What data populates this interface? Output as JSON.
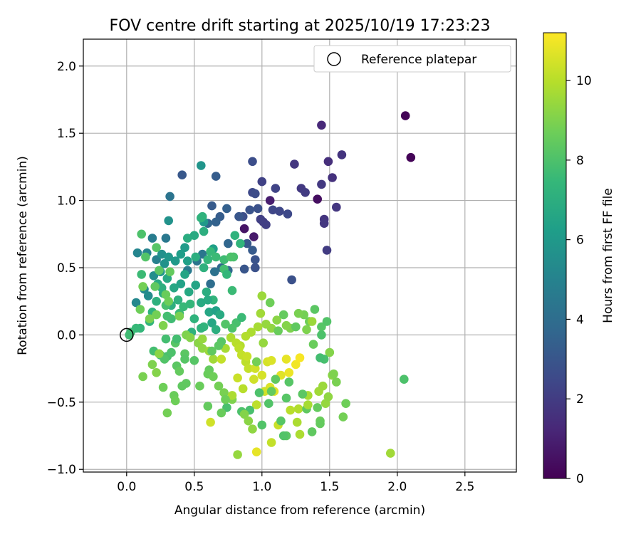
{
  "chart_data": {
    "type": "scatter",
    "title": "FOV centre drift starting at 2025/10/19 17:23:23",
    "xlabel": "Angular distance from reference (arcmin)",
    "ylabel": "Rotation from reference (arcmin)",
    "xlim": [
      -0.32,
      2.88
    ],
    "ylim": [
      -1.02,
      2.2
    ],
    "xticks": [
      0.0,
      0.5,
      1.0,
      1.5,
      2.0,
      2.5
    ],
    "xtick_labels": [
      "0.0",
      "0.5",
      "1.0",
      "1.5",
      "2.0",
      "2.5"
    ],
    "yticks": [
      -1.0,
      -0.5,
      0.0,
      0.5,
      1.0,
      1.5,
      2.0
    ],
    "ytick_labels": [
      "−1.0",
      "−0.5",
      "0.0",
      "0.5",
      "1.0",
      "1.5",
      "2.0"
    ],
    "grid": true,
    "legend": {
      "position": "top-right",
      "entries": [
        "Reference platepar"
      ]
    },
    "reference_point": {
      "x": 0.0,
      "y": 0.0,
      "label": "Reference platepar"
    },
    "colorbar": {
      "label": "Hours from first FF file",
      "colormap": "viridis",
      "range": [
        0,
        11.2
      ],
      "ticks": [
        0,
        2,
        4,
        6,
        8,
        10
      ],
      "tick_labels": [
        "0",
        "2",
        "4",
        "6",
        "8",
        "10"
      ],
      "colors": [
        "#440154",
        "#482878",
        "#3e4989",
        "#31688e",
        "#26828e",
        "#1f9e89",
        "#35b779",
        "#6ece58",
        "#b5de2b",
        "#fde725"
      ]
    },
    "points": [
      [
        2.06,
        1.63,
        0.1
      ],
      [
        2.1,
        1.32,
        0.1
      ],
      [
        1.41,
        1.01,
        0.4
      ],
      [
        0.87,
        0.79,
        0.6
      ],
      [
        1.06,
        1.0,
        0.9
      ],
      [
        0.94,
        0.73,
        0.8
      ],
      [
        1.44,
        1.56,
        1.3
      ],
      [
        1.49,
        1.29,
        1.5
      ],
      [
        1.52,
        1.17,
        1.6
      ],
      [
        1.59,
        1.34,
        1.7
      ],
      [
        1.24,
        1.27,
        1.8
      ],
      [
        1.29,
        1.09,
        1.9
      ],
      [
        1.32,
        1.06,
        2.0
      ],
      [
        1.44,
        1.12,
        1.9
      ],
      [
        1.46,
        0.86,
        1.7
      ],
      [
        1.55,
        0.95,
        1.8
      ],
      [
        1.48,
        0.63,
        2.0
      ],
      [
        1.46,
        0.83,
        1.8
      ],
      [
        1.01,
        0.84,
        2.0
      ],
      [
        1.03,
        0.82,
        2.1
      ],
      [
        0.99,
        0.86,
        2.1
      ],
      [
        1.0,
        1.14,
        2.2
      ],
      [
        1.1,
        1.09,
        2.3
      ],
      [
        1.13,
        0.92,
        2.4
      ],
      [
        1.19,
        0.9,
        2.5
      ],
      [
        1.08,
        0.93,
        2.4
      ],
      [
        0.93,
        1.06,
        2.5
      ],
      [
        0.95,
        1.05,
        2.6
      ],
      [
        0.93,
        1.29,
        2.7
      ],
      [
        1.22,
        0.41,
        2.8
      ],
      [
        0.95,
        0.5,
        2.8
      ],
      [
        0.95,
        0.56,
        2.9
      ],
      [
        0.87,
        0.49,
        3.0
      ],
      [
        0.86,
        0.88,
        2.7
      ],
      [
        0.97,
        0.94,
        2.8
      ],
      [
        0.91,
        0.93,
        2.9
      ],
      [
        0.83,
        0.88,
        3.0
      ],
      [
        0.89,
        0.68,
        3.1
      ],
      [
        0.93,
        0.63,
        3.2
      ],
      [
        0.69,
        0.88,
        3.3
      ],
      [
        0.63,
        0.96,
        3.2
      ],
      [
        0.66,
        1.18,
        3.3
      ],
      [
        0.41,
        1.19,
        3.1
      ],
      [
        0.74,
        0.94,
        3.4
      ],
      [
        0.66,
        0.84,
        3.5
      ],
      [
        0.6,
        0.83,
        3.6
      ],
      [
        0.75,
        0.68,
        3.7
      ],
      [
        0.75,
        0.48,
        3.8
      ],
      [
        0.7,
        0.5,
        3.8
      ],
      [
        0.62,
        0.38,
        4.0
      ],
      [
        0.65,
        0.47,
        4.2
      ],
      [
        0.56,
        0.6,
        4.4
      ],
      [
        0.52,
        0.55,
        4.3
      ],
      [
        0.45,
        0.48,
        4.6
      ],
      [
        0.32,
        1.03,
        4.3
      ],
      [
        0.29,
        0.72,
        4.5
      ],
      [
        0.19,
        0.72,
        4.7
      ],
      [
        0.22,
        0.56,
        4.9
      ],
      [
        0.15,
        0.61,
        5.0
      ],
      [
        0.08,
        0.61,
        5.1
      ],
      [
        0.07,
        0.24,
        5.2
      ],
      [
        0.13,
        0.34,
        5.3
      ],
      [
        0.16,
        0.29,
        5.4
      ],
      [
        0.2,
        0.44,
        5.5
      ],
      [
        0.26,
        0.6,
        5.6
      ],
      [
        0.28,
        0.53,
        5.7
      ],
      [
        0.25,
        0.47,
        5.8
      ],
      [
        0.31,
        0.58,
        5.9
      ],
      [
        0.36,
        0.55,
        6.0
      ],
      [
        0.43,
        0.65,
        6.1
      ],
      [
        0.4,
        0.6,
        6.2
      ],
      [
        0.45,
        0.55,
        6.3
      ],
      [
        0.4,
        0.38,
        6.4
      ],
      [
        0.43,
        0.45,
        6.5
      ],
      [
        0.35,
        0.35,
        6.6
      ],
      [
        0.3,
        0.42,
        6.7
      ],
      [
        0.23,
        0.38,
        6.8
      ],
      [
        0.27,
        0.31,
        6.9
      ],
      [
        0.33,
        0.22,
        7.0
      ],
      [
        0.38,
        0.26,
        7.1
      ],
      [
        0.31,
        0.85,
        5.7
      ],
      [
        0.55,
        1.26,
        5.8
      ],
      [
        0.57,
        0.84,
        6.0
      ],
      [
        0.64,
        0.64,
        6.3
      ],
      [
        0.56,
        0.88,
        7.1
      ],
      [
        0.55,
        0.87,
        7.2
      ],
      [
        0.57,
        0.77,
        7.0
      ],
      [
        0.5,
        0.74,
        6.8
      ],
      [
        0.45,
        0.72,
        6.9
      ],
      [
        0.51,
        0.58,
        7.0
      ],
      [
        0.57,
        0.5,
        7.1
      ],
      [
        0.6,
        0.56,
        7.4
      ],
      [
        0.62,
        0.62,
        7.5
      ],
      [
        0.66,
        0.58,
        7.6
      ],
      [
        0.72,
        0.56,
        7.7
      ],
      [
        0.72,
        0.49,
        7.8
      ],
      [
        0.84,
        0.68,
        7.3
      ],
      [
        0.8,
        0.74,
        7.2
      ],
      [
        0.79,
        0.58,
        7.9
      ],
      [
        0.77,
        0.58,
        8.0
      ],
      [
        0.74,
        0.45,
        7.4
      ],
      [
        0.78,
        0.33,
        7.6
      ],
      [
        0.64,
        0.26,
        7.3
      ],
      [
        0.59,
        0.32,
        6.9
      ],
      [
        0.51,
        0.37,
        6.5
      ],
      [
        0.46,
        0.32,
        6.7
      ],
      [
        0.55,
        0.24,
        6.8
      ],
      [
        0.61,
        0.17,
        6.6
      ],
      [
        0.66,
        0.18,
        6.4
      ],
      [
        0.63,
        0.09,
        6.6
      ],
      [
        0.69,
        0.15,
        6.8
      ],
      [
        0.66,
        0.04,
        7.0
      ],
      [
        0.48,
        0.02,
        7.1
      ],
      [
        0.5,
        0.12,
        7.2
      ],
      [
        0.57,
        0.06,
        7.3
      ],
      [
        0.47,
        0.23,
        7.4
      ],
      [
        0.42,
        0.21,
        7.5
      ],
      [
        0.39,
        0.16,
        7.6
      ],
      [
        0.33,
        0.12,
        7.7
      ],
      [
        0.3,
        0.14,
        7.8
      ],
      [
        0.29,
        0.22,
        7.9
      ],
      [
        0.26,
        0.35,
        7.0
      ],
      [
        0.22,
        0.25,
        7.1
      ],
      [
        0.19,
        0.17,
        7.2
      ],
      [
        0.17,
        0.1,
        7.3
      ],
      [
        0.1,
        0.05,
        7.4
      ],
      [
        0.07,
        0.05,
        7.5
      ],
      [
        0.03,
        0.02,
        7.6
      ],
      [
        0.02,
        0.0,
        7.7
      ],
      [
        0.11,
        0.45,
        7.6
      ],
      [
        0.11,
        0.75,
        8.0
      ],
      [
        0.14,
        0.58,
        8.1
      ],
      [
        0.22,
        0.65,
        8.2
      ],
      [
        0.24,
        0.48,
        8.3
      ],
      [
        0.21,
        0.36,
        8.4
      ],
      [
        0.32,
        0.47,
        8.5
      ],
      [
        0.29,
        0.3,
        8.6
      ],
      [
        0.31,
        0.25,
        8.7
      ],
      [
        0.22,
        0.15,
        8.8
      ],
      [
        0.17,
        0.12,
        8.9
      ],
      [
        0.27,
        0.07,
        9.0
      ],
      [
        0.1,
        0.19,
        8.7
      ],
      [
        0.12,
        0.36,
        8.8
      ],
      [
        0.2,
        -0.12,
        7.8
      ],
      [
        0.25,
        -0.15,
        7.7
      ],
      [
        0.29,
        -0.03,
        7.8
      ],
      [
        0.3,
        -0.16,
        7.9
      ],
      [
        0.33,
        -0.13,
        8.0
      ],
      [
        0.28,
        -0.18,
        8.1
      ],
      [
        0.36,
        -0.06,
        8.2
      ],
      [
        0.37,
        -0.23,
        8.3
      ],
      [
        0.41,
        -0.38,
        8.4
      ],
      [
        0.39,
        -0.27,
        8.5
      ],
      [
        0.35,
        -0.45,
        8.6
      ],
      [
        0.27,
        -0.39,
        8.7
      ],
      [
        0.3,
        -0.58,
        8.8
      ],
      [
        0.12,
        -0.31,
        8.9
      ],
      [
        0.19,
        -0.22,
        9.0
      ],
      [
        0.22,
        -0.28,
        9.1
      ],
      [
        0.24,
        -0.14,
        9.2
      ],
      [
        0.39,
        0.14,
        8.9
      ],
      [
        0.44,
        0.0,
        9.0
      ],
      [
        0.47,
        -0.02,
        9.1
      ],
      [
        0.53,
        -0.06,
        9.2
      ],
      [
        0.56,
        -0.1,
        9.3
      ],
      [
        0.56,
        -0.03,
        9.4
      ],
      [
        0.61,
        -0.12,
        9.5
      ],
      [
        0.64,
        -0.18,
        9.6
      ],
      [
        0.73,
        -0.1,
        9.7
      ],
      [
        0.77,
        -0.02,
        9.8
      ],
      [
        0.84,
        -0.08,
        9.9
      ],
      [
        0.85,
        -0.15,
        10.0
      ],
      [
        0.88,
        -0.2,
        10.1
      ],
      [
        0.9,
        -0.25,
        10.2
      ],
      [
        0.82,
        -0.32,
        10.3
      ],
      [
        0.94,
        -0.33,
        10.4
      ],
      [
        1.0,
        -0.3,
        10.5
      ],
      [
        1.06,
        -0.39,
        10.6
      ],
      [
        1.09,
        -0.42,
        10.7
      ],
      [
        0.96,
        -0.87,
        10.8
      ],
      [
        0.82,
        -0.89,
        9.4
      ],
      [
        0.96,
        -0.52,
        10.1
      ],
      [
        1.02,
        -0.42,
        10.4
      ],
      [
        1.12,
        -0.67,
        10.3
      ],
      [
        1.07,
        -0.8,
        10.2
      ],
      [
        1.21,
        -0.56,
        10.0
      ],
      [
        1.27,
        -0.55,
        9.9
      ],
      [
        1.28,
        -0.74,
        9.8
      ],
      [
        1.34,
        -0.45,
        9.7
      ],
      [
        1.42,
        -0.42,
        9.6
      ],
      [
        1.45,
        -0.38,
        9.5
      ],
      [
        1.47,
        -0.51,
        9.4
      ],
      [
        1.49,
        -0.46,
        9.3
      ],
      [
        1.52,
        -0.3,
        9.2
      ],
      [
        1.5,
        -0.13,
        9.1
      ],
      [
        1.53,
        -0.29,
        9.0
      ],
      [
        1.55,
        -0.35,
        8.9
      ],
      [
        1.6,
        -0.61,
        8.8
      ],
      [
        1.62,
        -0.51,
        8.7
      ],
      [
        1.43,
        -0.64,
        8.6
      ],
      [
        1.43,
        -0.66,
        8.5
      ],
      [
        1.37,
        -0.72,
        8.4
      ],
      [
        1.18,
        -0.75,
        8.3
      ],
      [
        1.14,
        -0.64,
        8.2
      ],
      [
        1.0,
        -0.67,
        8.1
      ],
      [
        0.85,
        -0.57,
        8.0
      ],
      [
        0.91,
        -0.56,
        7.9
      ],
      [
        0.74,
        -0.54,
        7.9
      ],
      [
        0.98,
        -0.43,
        8.0
      ],
      [
        1.05,
        -0.51,
        8.1
      ],
      [
        1.18,
        -0.47,
        8.2
      ],
      [
        1.3,
        -0.44,
        8.3
      ],
      [
        1.33,
        -0.55,
        8.4
      ],
      [
        1.41,
        -0.54,
        8.5
      ],
      [
        1.38,
        -0.07,
        8.6
      ],
      [
        1.35,
        0.1,
        8.7
      ],
      [
        1.31,
        0.15,
        8.8
      ],
      [
        1.27,
        0.16,
        8.9
      ],
      [
        1.21,
        0.05,
        9.0
      ],
      [
        1.18,
        0.07,
        9.1
      ],
      [
        1.11,
        0.11,
        9.2
      ],
      [
        1.07,
        0.05,
        9.3
      ],
      [
        1.03,
        0.08,
        9.4
      ],
      [
        1.0,
        0.29,
        9.5
      ],
      [
        0.99,
        0.16,
        9.6
      ],
      [
        0.97,
        0.06,
        9.7
      ],
      [
        0.92,
        0.02,
        9.8
      ],
      [
        0.88,
        -0.01,
        9.9
      ],
      [
        0.81,
        -0.06,
        10.0
      ],
      [
        0.83,
        -0.1,
        10.1
      ],
      [
        0.85,
        -0.15,
        10.2
      ],
      [
        0.89,
        -0.16,
        10.3
      ],
      [
        0.95,
        -0.25,
        10.4
      ],
      [
        1.04,
        -0.2,
        10.5
      ],
      [
        1.07,
        -0.19,
        10.6
      ],
      [
        1.14,
        -0.3,
        10.7
      ],
      [
        1.18,
        -0.18,
        10.8
      ],
      [
        1.2,
        -0.28,
        10.9
      ],
      [
        1.25,
        -0.22,
        11.0
      ],
      [
        1.28,
        -0.17,
        11.1
      ],
      [
        0.96,
        -0.2,
        8.8
      ],
      [
        1.06,
        0.24,
        8.7
      ],
      [
        1.12,
        0.03,
        8.6
      ],
      [
        1.16,
        0.15,
        8.5
      ],
      [
        1.25,
        0.06,
        8.4
      ],
      [
        1.39,
        0.19,
        8.3
      ],
      [
        1.44,
        0.06,
        8.2
      ],
      [
        1.48,
        0.1,
        8.1
      ],
      [
        1.44,
        0.0,
        8.0
      ],
      [
        1.46,
        -0.18,
        7.9
      ],
      [
        1.43,
        -0.17,
        7.8
      ],
      [
        0.81,
        0.09,
        7.9
      ],
      [
        0.78,
        0.05,
        8.0
      ],
      [
        0.73,
        0.08,
        8.1
      ],
      [
        0.7,
        -0.05,
        8.2
      ],
      [
        0.68,
        -0.08,
        8.3
      ],
      [
        0.63,
        -0.12,
        8.4
      ],
      [
        0.61,
        -0.26,
        8.5
      ],
      [
        0.6,
        -0.29,
        8.6
      ],
      [
        0.64,
        -0.31,
        8.7
      ],
      [
        0.68,
        -0.38,
        8.8
      ],
      [
        0.72,
        -0.43,
        8.9
      ],
      [
        0.78,
        -0.48,
        9.0
      ],
      [
        0.87,
        -0.59,
        9.1
      ],
      [
        0.9,
        -0.64,
        9.2
      ],
      [
        0.93,
        -0.7,
        9.3
      ],
      [
        0.86,
        -0.4,
        10.0
      ],
      [
        0.62,
        -0.65,
        10.4
      ],
      [
        0.7,
        -0.18,
        10.2
      ],
      [
        0.78,
        -0.45,
        9.8
      ],
      [
        0.54,
        -0.38,
        8.6
      ],
      [
        0.44,
        -0.36,
        8.4
      ],
      [
        0.5,
        -0.19,
        8.2
      ],
      [
        0.43,
        -0.14,
        8.3
      ],
      [
        0.36,
        -0.49,
        8.7
      ],
      [
        0.6,
        -0.53,
        8.5
      ],
      [
        0.7,
        -0.58,
        8.6
      ],
      [
        0.73,
        -0.48,
        8.7
      ],
      [
        1.34,
        -0.52,
        9.7
      ],
      [
        1.26,
        -0.65,
        9.8
      ],
      [
        1.33,
        0.04,
        9.0
      ],
      [
        1.37,
        0.1,
        9.5
      ],
      [
        2.05,
        -0.33,
        8.0
      ],
      [
        1.95,
        -0.88,
        9.6
      ],
      [
        1.16,
        -0.75,
        8.1
      ],
      [
        1.1,
        -0.33,
        8.4
      ],
      [
        1.07,
        -0.42,
        8.5
      ],
      [
        1.01,
        -0.06,
        9.4
      ],
      [
        1.2,
        -0.35,
        8.2
      ],
      [
        0.37,
        -0.03,
        7.8
      ],
      [
        0.85,
        0.13,
        7.6
      ],
      [
        0.43,
        -0.18,
        8.2
      ],
      [
        0.55,
        0.05,
        7.2
      ],
      [
        0.6,
        0.26,
        6.8
      ]
    ]
  }
}
